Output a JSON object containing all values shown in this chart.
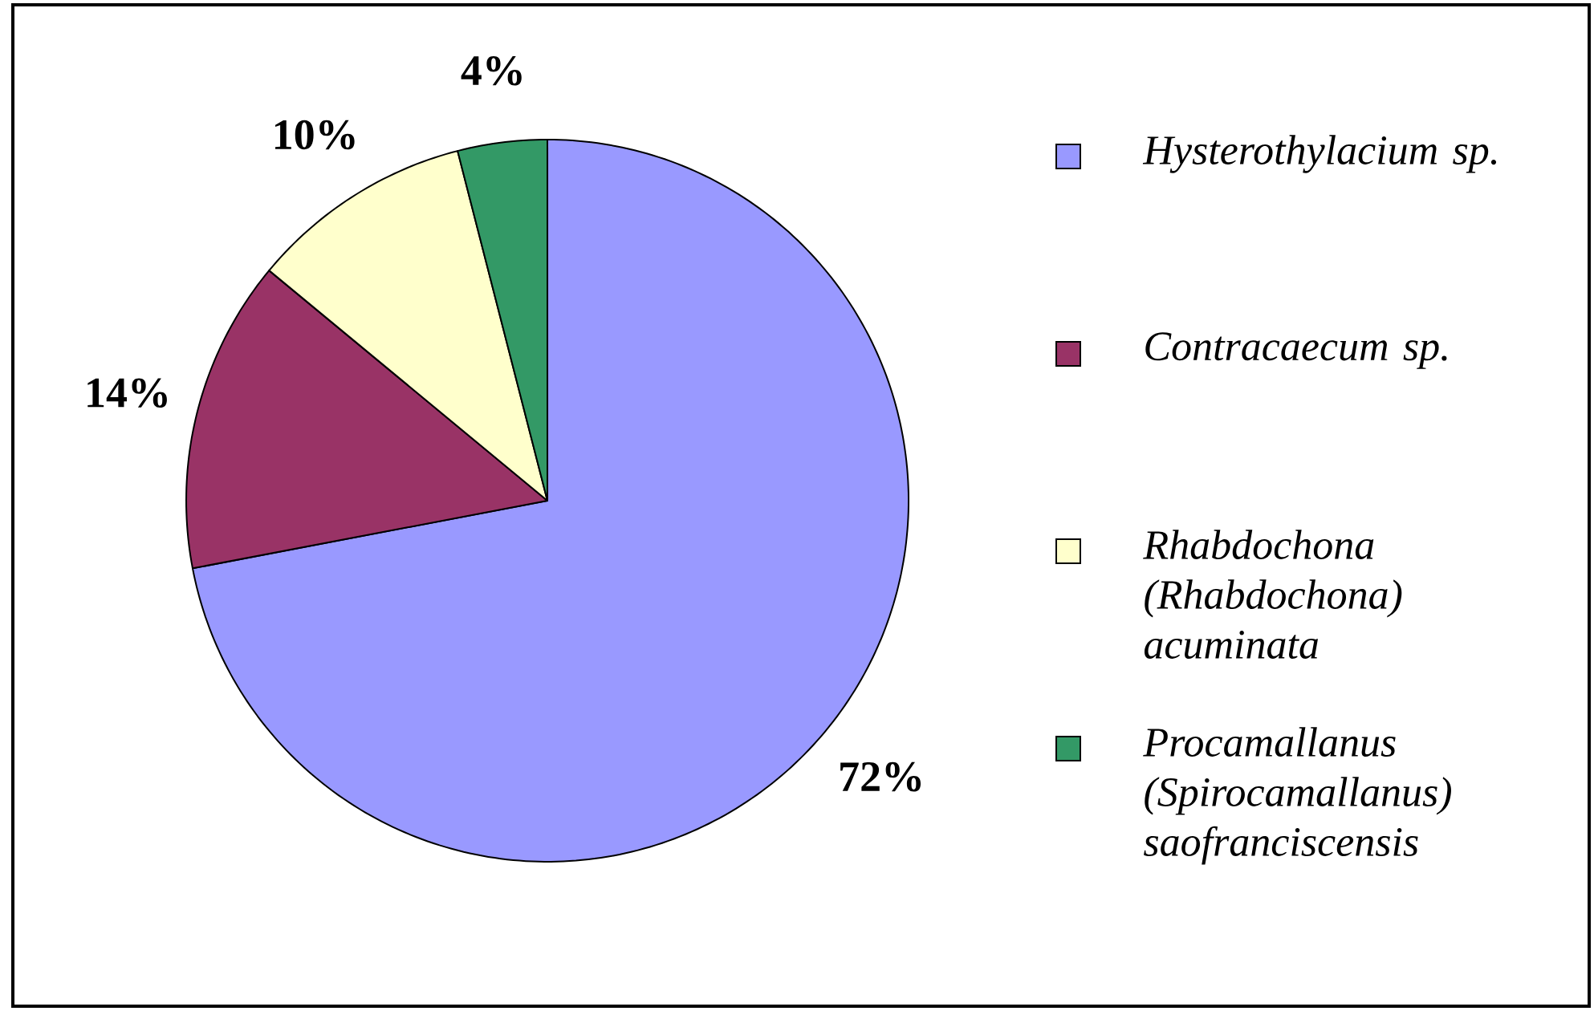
{
  "chart_data": {
    "type": "pie",
    "categories": [
      "Hysterothylacium sp.",
      "Contracaecum sp.",
      "Rhabdochona (Rhabdochona) acuminata",
      "Procamallanus (Spirocamallanus) saofranciscensis"
    ],
    "values": [
      72,
      14,
      10,
      4
    ],
    "colors": [
      "#9999ff",
      "#993366",
      "#ffffcc",
      "#339966"
    ],
    "value_labels": [
      "72%",
      "14%",
      "10%",
      "4%"
    ],
    "legend": "right"
  }
}
